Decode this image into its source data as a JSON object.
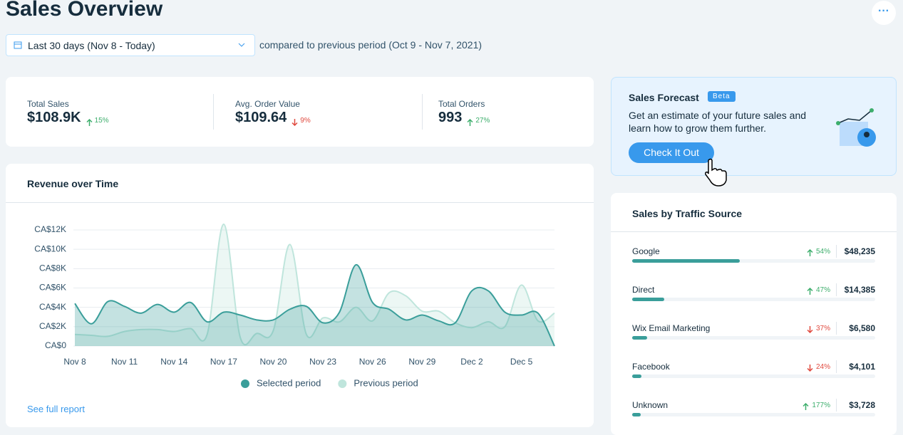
{
  "header": {
    "title": "Sales Overview",
    "date_range": "Last 30 days (Nov 8 - Today)",
    "comparison": "compared to previous period (Oct 9 - Nov 7, 2021)"
  },
  "kpis": [
    {
      "label": "Total Sales",
      "value": "$108.9K",
      "change": "15%",
      "direction": "up"
    },
    {
      "label": "Avg. Order Value",
      "value": "$109.64",
      "change": "9%",
      "direction": "down"
    },
    {
      "label": "Total Orders",
      "value": "993",
      "change": "27%",
      "direction": "up"
    }
  ],
  "forecast": {
    "title": "Sales Forecast",
    "badge": "Beta",
    "text": "Get an estimate of your future sales and learn how to grow them further.",
    "button": "Check It Out"
  },
  "chart_data": {
    "type": "line",
    "title": "Revenue over Time",
    "link": "See full report",
    "categories": [
      "Nov 8",
      null,
      null,
      "Nov 11",
      null,
      null,
      "Nov 14",
      null,
      null,
      "Nov 17",
      null,
      null,
      "Nov 20",
      null,
      null,
      "Nov 23",
      null,
      null,
      "Nov 26",
      null,
      null,
      "Nov 29",
      null,
      null,
      "Dec 2",
      null,
      null,
      "Dec 5",
      null,
      null
    ],
    "series": [
      {
        "name": "Selected period",
        "color": "#3a9e9a",
        "values": [
          4400,
          2300,
          4600,
          4100,
          3400,
          4300,
          3500,
          4500,
          2500,
          3500,
          3200,
          2700,
          2700,
          3800,
          4100,
          2400,
          3500,
          8400,
          4500,
          3800,
          2700,
          3200,
          2600,
          2400,
          5700,
          5700,
          3500,
          3200,
          3400,
          0
        ]
      },
      {
        "name": "Previous period",
        "color": "#bfe5dc",
        "values": [
          1200,
          1100,
          1000,
          1500,
          1700,
          1700,
          1500,
          1800,
          1200,
          12600,
          900,
          1300,
          1600,
          10500,
          1200,
          2900,
          2500,
          4000,
          2600,
          5500,
          5200,
          3600,
          3600,
          2400,
          1900,
          2500,
          2000,
          6300,
          2600,
          3400
        ]
      }
    ],
    "ylim": [
      0,
      12000
    ],
    "yticks": [
      {
        "value": 0,
        "label": "CA$0"
      },
      {
        "value": 2000,
        "label": "CA$2K"
      },
      {
        "value": 4000,
        "label": "CA$4K"
      },
      {
        "value": 6000,
        "label": "CA$6K"
      },
      {
        "value": 8000,
        "label": "CA$8K"
      },
      {
        "value": 10000,
        "label": "CA$10K"
      },
      {
        "value": 12000,
        "label": "CA$12K"
      }
    ],
    "grid": true
  },
  "traffic": {
    "title": "Sales by Traffic Source",
    "rows": [
      {
        "name": "Google",
        "change": "54%",
        "direction": "up",
        "amount": {
          "value": 48235,
          "label": "$48,235"
        }
      },
      {
        "name": "Direct",
        "change": "47%",
        "direction": "up",
        "amount": {
          "value": 14385,
          "label": "$14,385"
        }
      },
      {
        "name": "Wix Email Marketing",
        "change": "37%",
        "direction": "down",
        "amount": {
          "value": 6580,
          "label": "$6,580"
        }
      },
      {
        "name": "Facebook",
        "change": "24%",
        "direction": "down",
        "amount": {
          "value": 4101,
          "label": "$4,101"
        }
      },
      {
        "name": "Unknown",
        "change": "177%",
        "direction": "up",
        "amount": {
          "value": 3728,
          "label": "$3,728"
        }
      }
    ]
  }
}
